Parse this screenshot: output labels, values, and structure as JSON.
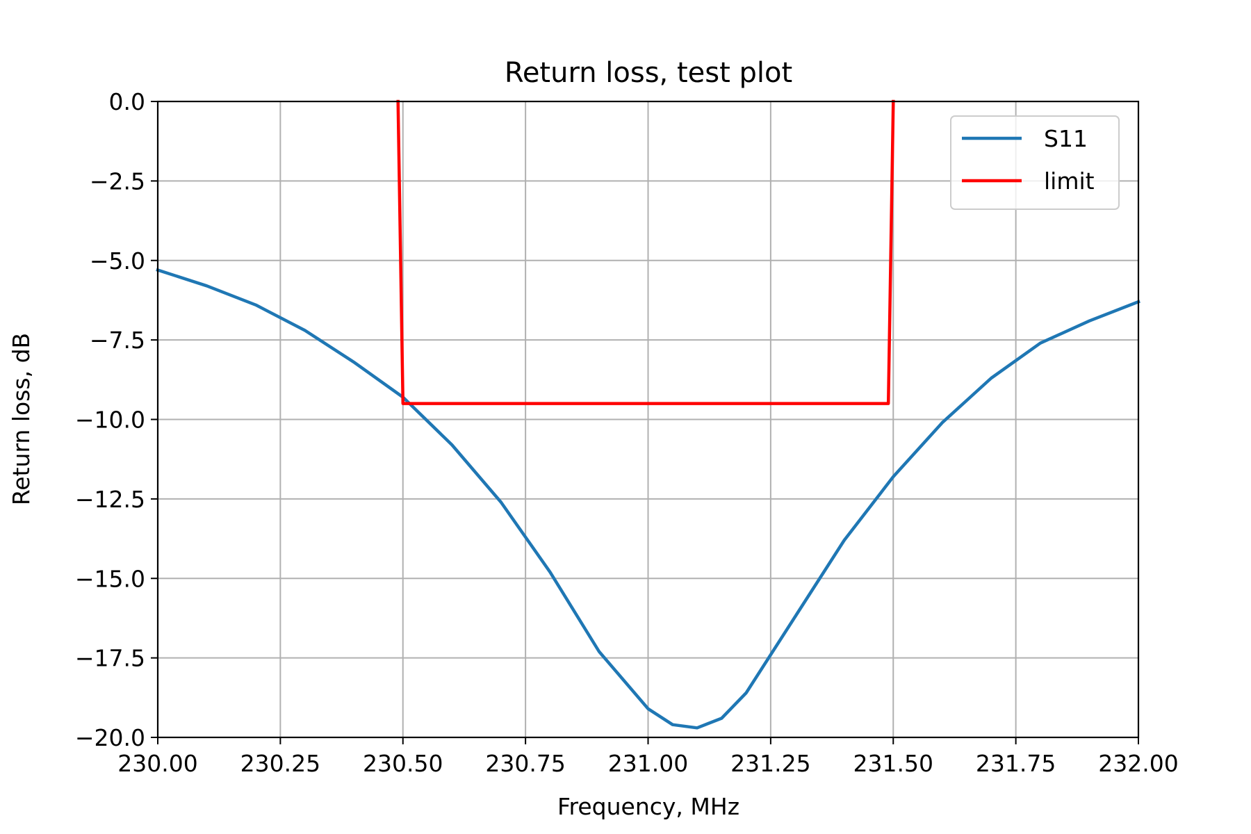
{
  "chart_data": {
    "type": "line",
    "title": "Return loss, test plot",
    "xlabel": "Frequency, MHz",
    "ylabel": "Return loss, dB",
    "xlim": [
      230.0,
      232.0
    ],
    "ylim": [
      -20.0,
      0.0
    ],
    "grid": true,
    "legend_position": "top-right",
    "x_ticks": [
      "230.00",
      "230.25",
      "230.50",
      "230.75",
      "231.00",
      "231.25",
      "231.50",
      "231.75",
      "232.00"
    ],
    "y_ticks": [
      "0.0",
      "−2.5",
      "−5.0",
      "−7.5",
      "−10.0",
      "−12.5",
      "−15.0",
      "−17.5",
      "−20.0"
    ],
    "colors": {
      "s11": "#1f77b4",
      "limit": "#ff0000",
      "grid": "#b0b0b0"
    },
    "series": [
      {
        "name": "S11",
        "x": [
          230.0,
          230.1,
          230.2,
          230.3,
          230.4,
          230.5,
          230.6,
          230.7,
          230.8,
          230.9,
          231.0,
          231.05,
          231.1,
          231.15,
          231.2,
          231.3,
          231.4,
          231.5,
          231.6,
          231.7,
          231.8,
          231.9,
          232.0
        ],
        "values": [
          -5.3,
          -5.8,
          -6.4,
          -7.2,
          -8.2,
          -9.3,
          -10.8,
          -12.6,
          -14.8,
          -17.3,
          -19.1,
          -19.6,
          -19.7,
          -19.4,
          -18.6,
          -16.2,
          -13.8,
          -11.8,
          -10.1,
          -8.7,
          -7.6,
          -6.9,
          -6.3
        ]
      },
      {
        "name": "limit",
        "x": [
          230.49,
          230.5,
          231.49,
          231.5
        ],
        "values": [
          0.0,
          -9.5,
          -9.5,
          0.0
        ]
      }
    ]
  }
}
